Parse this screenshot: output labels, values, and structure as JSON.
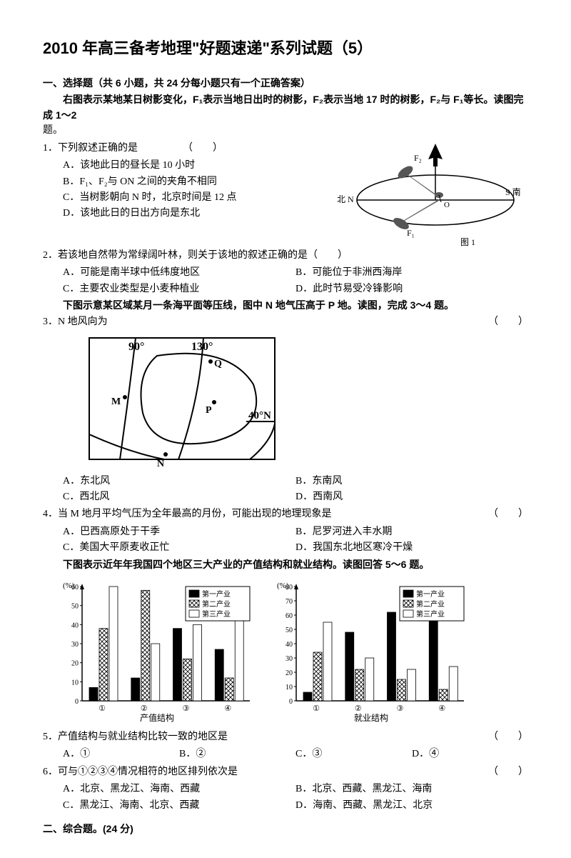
{
  "title": "2010 年高三备考地理\"好题速递\"系列试题（5）",
  "section1": "一、选择题（共 6 小题，共 24 分每小题只有一个正确答案）",
  "intro12": "右图表示某地某日树影变化，F₁表示当地日出时的树影，F₂表示当地 17 时的树影，F₂与 F₁等长。读图完成 1～2",
  "intro12b": "题。",
  "q1": "1．下列叙述正确的是",
  "paren": "（　　）",
  "q1a": "A．该地此日的昼长是 10 小时",
  "q1b": "B．F₁、F₂与 ON 之间的夹角不相同",
  "q1c": "C．当树影朝向 N 时，北京时间是 12 点",
  "q1d": "D．该地此日的日出方向是东北",
  "q2": "2．若该地自然带为常绿阔叶林，则关于该地的叙述正确的是（　　）",
  "q2a": "A．可能是南半球中低纬度地区",
  "q2b": "B．可能位于非洲西海岸",
  "q2c": "C．主要农业类型是小麦种植业",
  "q2d": "D．此时节易受冷锋影响",
  "intro34": "下图示意某区域某月一条海平面等压线，图中 N 地气压高于 P 地。读图，完成 3～4 题。",
  "q3": "3．N 地风向为",
  "q3a": "A．东北风",
  "q3b": "B．东南风",
  "q3c": "C．西北风",
  "q3d": "D．西南风",
  "q4": "4．当 M 地月平均气压为全年最高的月份，可能出现的地理现象是",
  "q4a": "A．巴西高原处于干季",
  "q4b": "B．尼罗河进入丰水期",
  "q4c": "C．美国大平原麦收正忙",
  "q4d": "D．我国东北地区寒冷干燥",
  "intro56": "下图表示近年年我国四个地区三大产业的产值结构和就业结构。读图回答 5～6 题。",
  "q5": "5．产值结构与就业结构比较一致的地区是",
  "q5a": "A．①",
  "q5b": "B．②",
  "q5c": "C．③",
  "q5d": "D．④",
  "q6": "6．可与①②③④情况相符的地区排列依次是",
  "q6a": "A．北京、黑龙江、海南、西藏",
  "q6b": "B．北京、西藏、黑龙江、海南",
  "q6c": "C．黑龙江、海南、北京、西藏",
  "q6d": "D．海南、西藏、黑龙江、北京",
  "section2": "二、综合题。(24 分)",
  "fig1": {
    "north": "北 N",
    "south": "S 南",
    "f1": "F₁",
    "f2": "F₂",
    "o": "O",
    "caption": "图 1"
  },
  "fig2": {
    "lon90": "90°",
    "lon130": "130°",
    "lat40": "40°N",
    "M": "M",
    "N": "N",
    "P": "P",
    "Q": "Q"
  },
  "charts": {
    "ylabel": "(%)",
    "xlabel1": "产值结构",
    "xlabel2": "就业结构",
    "legend1": "第一产业",
    "legend2": "第二产业",
    "legend3": "第三产业",
    "cats": [
      "①",
      "②",
      "③",
      "④"
    ],
    "chart1": {
      "ymax": 60,
      "ystep": 10,
      "data": [
        [
          7,
          38,
          60
        ],
        [
          12,
          58,
          30
        ],
        [
          38,
          22,
          40
        ],
        [
          27,
          12,
          60
        ]
      ]
    },
    "chart2": {
      "ymax": 80,
      "ystep": 10,
      "data": [
        [
          6,
          34,
          55
        ],
        [
          48,
          22,
          30
        ],
        [
          62,
          15,
          22
        ],
        [
          72,
          8,
          24
        ]
      ]
    },
    "fills": [
      "#000000",
      "cross",
      "#ffffff"
    ]
  }
}
